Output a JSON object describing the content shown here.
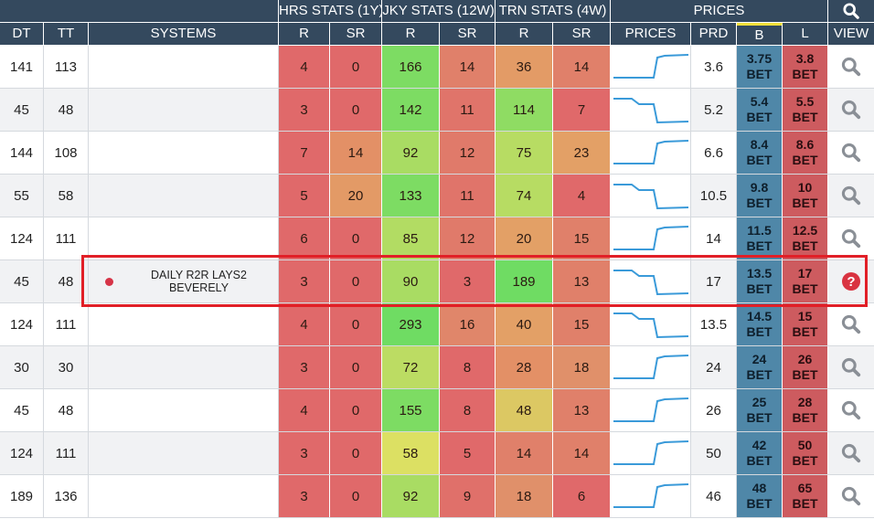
{
  "header_groups": {
    "hrs": "HRS STATS (1Y)",
    "jky": "JKY STATS (12W)",
    "trn": "TRN STATS (4W)",
    "prices": "PRICES"
  },
  "columns": {
    "dt": "DT",
    "tt": "TT",
    "systems": "SYSTEMS",
    "hrs_r": "R",
    "hrs_sr": "SR",
    "jky_r": "R",
    "jky_sr": "SR",
    "trn_r": "R",
    "trn_sr": "SR",
    "prices": "PRICES",
    "prd": "PRD",
    "b": "B",
    "l": "L",
    "view": "VIEW"
  },
  "icons": {
    "header": "search-icon",
    "row": "search-icon",
    "highlighted_row": "help-circle-icon"
  },
  "colors": {
    "header_bg": "#34495e",
    "back": "#4f87a8",
    "lay": "#cd5b5f",
    "highlight_border": "#e11f27",
    "sparkline": "#3a9ad9"
  },
  "bet_label": "BET",
  "rows": [
    {
      "dt": "141",
      "tt": "113",
      "system": "",
      "hrs_r": "4",
      "hrs_sr": "0",
      "jky_r": "166",
      "jky_sr": "14",
      "trn_r": "36",
      "trn_sr": "14",
      "prd": "3.6",
      "b": "3.75",
      "l": "3.8",
      "colors": [
        "#e0696a",
        "#e0696a",
        "#7ddc63",
        "#e0806a",
        "#e39b66",
        "#e0806a"
      ],
      "spark": "up"
    },
    {
      "dt": "45",
      "tt": "48",
      "system": "",
      "hrs_r": "3",
      "hrs_sr": "0",
      "jky_r": "142",
      "jky_sr": "11",
      "trn_r": "114",
      "trn_sr": "7",
      "prd": "5.2",
      "b": "5.4",
      "l": "5.5",
      "colors": [
        "#e0696a",
        "#e0696a",
        "#7ddc63",
        "#e0746a",
        "#8fdc63",
        "#e0696a"
      ],
      "spark": "down"
    },
    {
      "dt": "144",
      "tt": "108",
      "system": "",
      "hrs_r": "7",
      "hrs_sr": "14",
      "jky_r": "92",
      "jky_sr": "12",
      "trn_r": "75",
      "trn_sr": "23",
      "prd": "6.6",
      "b": "8.4",
      "l": "8.6",
      "colors": [
        "#e0696a",
        "#e39066",
        "#a9dc63",
        "#e07a6a",
        "#b7dc63",
        "#e3a066"
      ],
      "spark": "up"
    },
    {
      "dt": "55",
      "tt": "58",
      "system": "",
      "hrs_r": "5",
      "hrs_sr": "20",
      "jky_r": "133",
      "jky_sr": "11",
      "trn_r": "74",
      "trn_sr": "4",
      "prd": "10.5",
      "b": "9.8",
      "l": "10",
      "colors": [
        "#e0696a",
        "#e39a66",
        "#7ddc63",
        "#e0746a",
        "#b7dc63",
        "#e0696a"
      ],
      "spark": "down"
    },
    {
      "dt": "124",
      "tt": "111",
      "system": "",
      "hrs_r": "6",
      "hrs_sr": "0",
      "jky_r": "85",
      "jky_sr": "12",
      "trn_r": "20",
      "trn_sr": "15",
      "prd": "14",
      "b": "11.5",
      "l": "12.5",
      "colors": [
        "#e0696a",
        "#e0696a",
        "#b2dc63",
        "#e07a6a",
        "#e3a066",
        "#e0806a"
      ],
      "spark": "up"
    },
    {
      "dt": "45",
      "tt": "48",
      "system": "DAILY R2R LAYS2 BEVERELY",
      "hrs_r": "3",
      "hrs_sr": "0",
      "jky_r": "90",
      "jky_sr": "3",
      "trn_r": "189",
      "trn_sr": "13",
      "prd": "17",
      "b": "13.5",
      "l": "17",
      "colors": [
        "#e0696a",
        "#e0696a",
        "#a9dc63",
        "#e0696a",
        "#6fdc63",
        "#e0806a"
      ],
      "spark": "down",
      "highlight": true
    },
    {
      "dt": "124",
      "tt": "111",
      "system": "",
      "hrs_r": "4",
      "hrs_sr": "0",
      "jky_r": "293",
      "jky_sr": "16",
      "trn_r": "40",
      "trn_sr": "15",
      "prd": "13.5",
      "b": "14.5",
      "l": "15",
      "colors": [
        "#e0696a",
        "#e0696a",
        "#6fdc63",
        "#e0866a",
        "#e3a066",
        "#e0806a"
      ],
      "spark": "down"
    },
    {
      "dt": "30",
      "tt": "30",
      "system": "",
      "hrs_r": "3",
      "hrs_sr": "0",
      "jky_r": "72",
      "jky_sr": "8",
      "trn_r": "28",
      "trn_sr": "18",
      "prd": "24",
      "b": "24",
      "l": "26",
      "colors": [
        "#e0696a",
        "#e0696a",
        "#bcdc63",
        "#e0696a",
        "#e39066",
        "#e0906a"
      ],
      "spark": "up"
    },
    {
      "dt": "45",
      "tt": "48",
      "system": "",
      "hrs_r": "4",
      "hrs_sr": "0",
      "jky_r": "155",
      "jky_sr": "8",
      "trn_r": "48",
      "trn_sr": "13",
      "prd": "26",
      "b": "25",
      "l": "28",
      "colors": [
        "#e0696a",
        "#e0696a",
        "#7ddc63",
        "#e0696a",
        "#dcc863",
        "#e0806a"
      ],
      "spark": "up"
    },
    {
      "dt": "124",
      "tt": "111",
      "system": "",
      "hrs_r": "3",
      "hrs_sr": "0",
      "jky_r": "58",
      "jky_sr": "5",
      "trn_r": "14",
      "trn_sr": "14",
      "prd": "50",
      "b": "42",
      "l": "50",
      "colors": [
        "#e0696a",
        "#e0696a",
        "#dce063",
        "#e0696a",
        "#e0806a",
        "#e0806a"
      ],
      "spark": "up"
    },
    {
      "dt": "189",
      "tt": "136",
      "system": "",
      "hrs_r": "3",
      "hrs_sr": "0",
      "jky_r": "92",
      "jky_sr": "9",
      "trn_r": "18",
      "trn_sr": "6",
      "prd": "46",
      "b": "48",
      "l": "65",
      "colors": [
        "#e0696a",
        "#e0696a",
        "#a9dc63",
        "#e0706a",
        "#e0906a",
        "#e0696a"
      ],
      "spark": "up"
    }
  ]
}
